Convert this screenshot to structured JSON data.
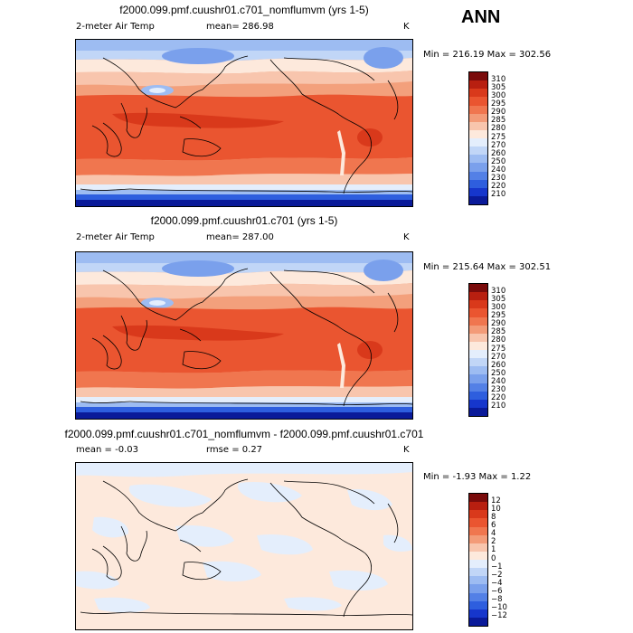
{
  "season": "ANN",
  "panels": [
    {
      "title": "f2000.099.pmf.cuushr01.c701_nomflumvm (yrs 1-5)",
      "left_label": "2-meter Air Temp",
      "center_label": "mean= 286.98",
      "units": "K",
      "minmax": "Min = 216.19 Max = 302.56"
    },
    {
      "title": "f2000.099.pmf.cuushr01.c701 (yrs 1-5)",
      "left_label": "2-meter Air Temp",
      "center_label": "mean= 287.00",
      "units": "K",
      "minmax": "Min = 215.64 Max = 302.51"
    },
    {
      "title": "f2000.099.pmf.cuushr01.c701_nomflumvm - f2000.099.pmf.cuushr01.c701",
      "left_label": "mean =  -0.03",
      "center_label": "rmse =   0.27",
      "units": "K",
      "minmax": "Min =  -1.93 Max =   1.22"
    }
  ],
  "colorbar_abs": {
    "labels": [
      "310",
      "305",
      "300",
      "295",
      "290",
      "285",
      "280",
      "275",
      "270",
      "260",
      "250",
      "240",
      "230",
      "220",
      "210"
    ],
    "colors": [
      "#7a0b0b",
      "#b81f10",
      "#d9391b",
      "#ea5530",
      "#f0764f",
      "#f39b78",
      "#f8c5ad",
      "#fde9dc",
      "#e4eefc",
      "#c1d6f7",
      "#9dbcf2",
      "#7aa0ec",
      "#5380e6",
      "#2e5ede",
      "#1636cc",
      "#0a1a99"
    ]
  },
  "colorbar_diff": {
    "labels": [
      "12",
      "10",
      "8",
      "6",
      "4",
      "2",
      "1",
      "0",
      "−1",
      "−2",
      "−4",
      "−6",
      "−8",
      "−10",
      "−12"
    ],
    "colors": [
      "#7a0b0b",
      "#b81f10",
      "#d9391b",
      "#ea5530",
      "#f0764f",
      "#f39b78",
      "#f8c5ad",
      "#fde9dc",
      "#e4eefc",
      "#c1d6f7",
      "#9dbcf2",
      "#7aa0ec",
      "#5380e6",
      "#2e5ede",
      "#1636cc",
      "#0a1a99"
    ]
  }
}
